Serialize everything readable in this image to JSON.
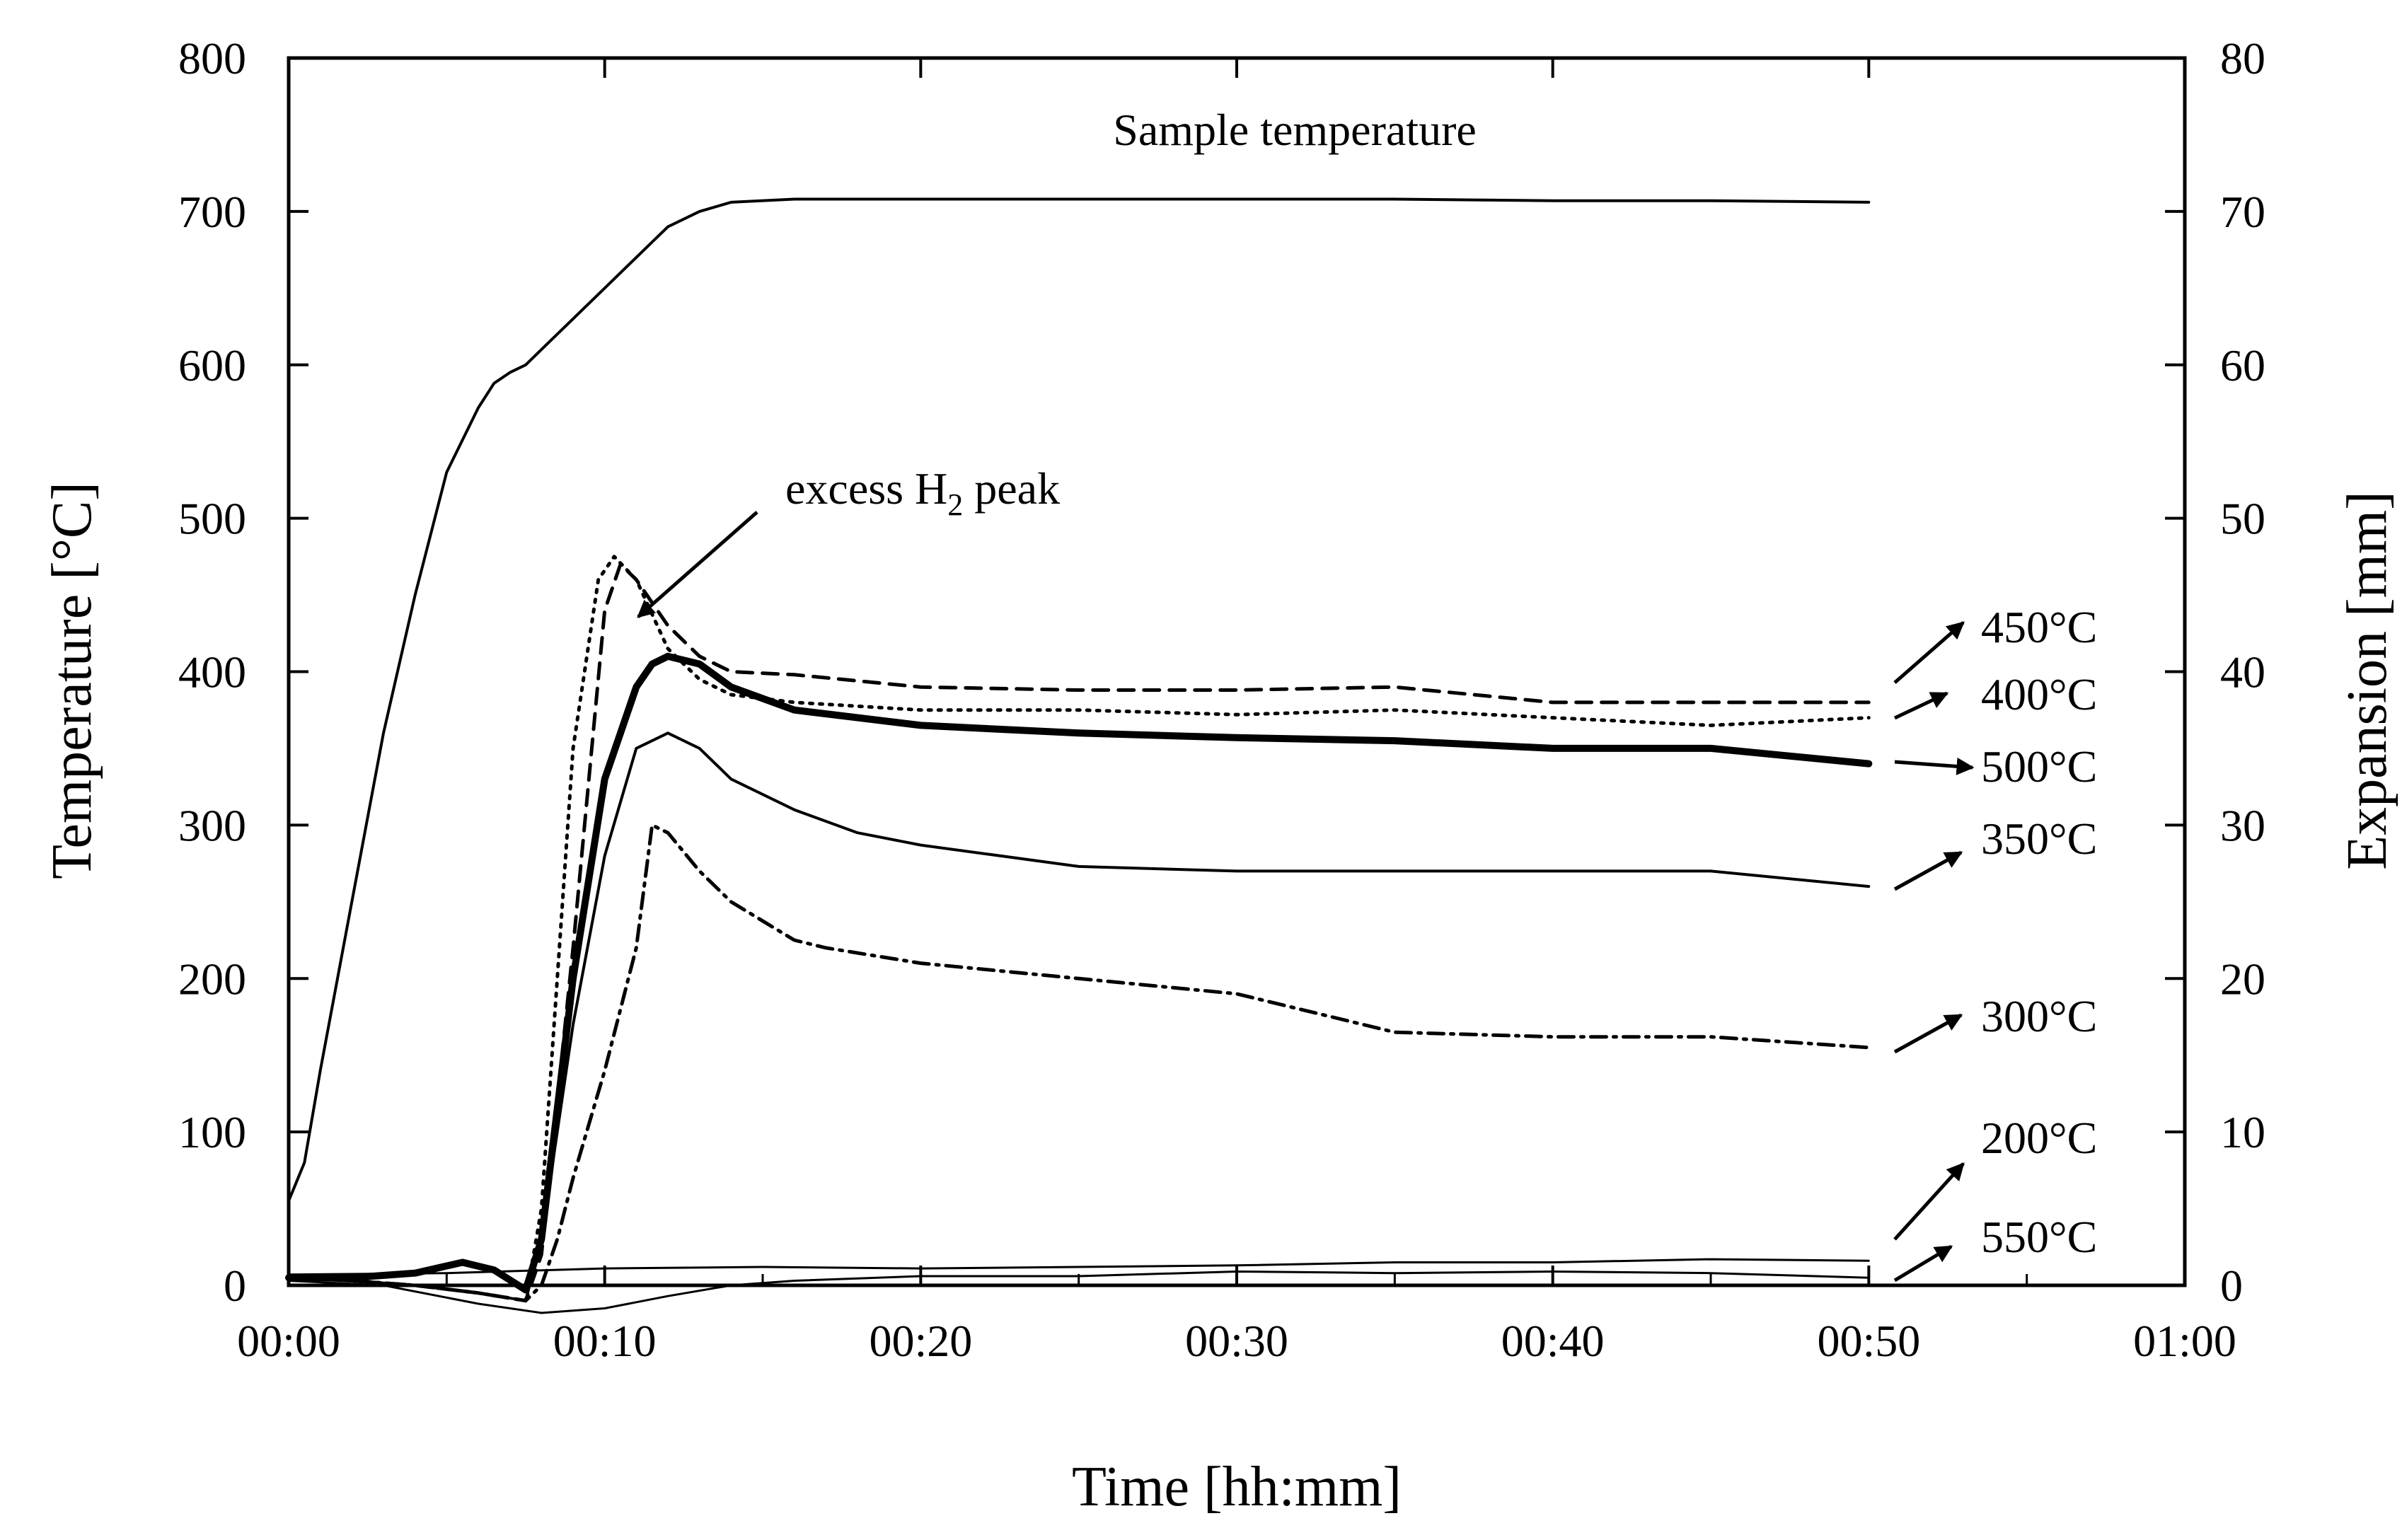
{
  "chart_data": {
    "type": "line",
    "title": "",
    "xlabel": "Time [hh:mm]",
    "ylabel": "Temperature [°C]",
    "y2label": "Expansion [mm]",
    "xlim": [
      0,
      60
    ],
    "ylim": [
      0,
      800
    ],
    "y2lim": [
      0,
      80
    ],
    "xticks": [
      0,
      10,
      20,
      30,
      40,
      50,
      60
    ],
    "xtick_labels": [
      "00:00",
      "00:10",
      "00:20",
      "00:30",
      "00:40",
      "00:50",
      "01:00"
    ],
    "yticks": [
      0,
      100,
      200,
      300,
      400,
      500,
      600,
      700,
      800
    ],
    "ytick_labels": [
      "0",
      "100",
      "200",
      "300",
      "400",
      "500",
      "600",
      "700",
      "800"
    ],
    "y2ticks": [
      0,
      10,
      20,
      30,
      40,
      50,
      60,
      70,
      80
    ],
    "y2tick_labels": [
      "0",
      "10",
      "20",
      "30",
      "40",
      "50",
      "60",
      "70",
      "80"
    ],
    "series": [
      {
        "name": "Sample temperature",
        "axis": "left",
        "style": "solid",
        "x": [
          0,
          0.5,
          1,
          2,
          3,
          4,
          5,
          6,
          6.5,
          7,
          7.5,
          8,
          9,
          10,
          11,
          12,
          13,
          14,
          16,
          20,
          25,
          30,
          35,
          40,
          45,
          50
        ],
        "y": [
          55,
          80,
          140,
          250,
          360,
          450,
          530,
          572,
          588,
          595,
          600,
          610,
          630,
          650,
          670,
          690,
          700,
          706,
          708,
          708,
          708,
          708,
          708,
          707,
          707,
          706
        ]
      },
      {
        "name": "450°C",
        "axis": "right",
        "style": "dashed",
        "x": [
          0,
          2,
          4,
          6,
          7.5,
          8,
          9,
          10,
          10.5,
          11,
          12,
          13,
          14,
          16,
          20,
          25,
          30,
          35,
          40,
          45,
          50
        ],
        "y": [
          0.5,
          0.3,
          0,
          -0.5,
          -1,
          2,
          22,
          44,
          47,
          46,
          43,
          41,
          40,
          39.8,
          39,
          38.8,
          38.8,
          39,
          38,
          38,
          38
        ]
      },
      {
        "name": "400°C",
        "axis": "right",
        "style": "dotted",
        "x": [
          0,
          2,
          4,
          6,
          7.5,
          8,
          9,
          9.8,
          10.3,
          11,
          12,
          13,
          14,
          16,
          20,
          25,
          30,
          35,
          40,
          45,
          50
        ],
        "y": [
          0.5,
          0.3,
          0,
          -0.5,
          -1,
          5,
          35,
          46,
          47.5,
          46,
          41.5,
          39.5,
          38.5,
          38,
          37.5,
          37.5,
          37.2,
          37.5,
          37,
          36.5,
          37
        ]
      },
      {
        "name": "500°C",
        "axis": "right",
        "style": "solid-thick",
        "x": [
          0,
          2,
          4,
          5.5,
          6.5,
          7.5,
          8,
          9,
          10,
          11,
          11.5,
          12,
          13,
          14,
          16,
          20,
          25,
          30,
          35,
          40,
          45,
          50
        ],
        "y": [
          0.5,
          0.5,
          0.8,
          1.5,
          1.0,
          -0.3,
          3,
          20,
          33,
          39,
          40.5,
          41,
          40.5,
          39,
          37.5,
          36.5,
          36,
          35.7,
          35.5,
          35,
          35,
          34
        ]
      },
      {
        "name": "350°C",
        "axis": "right",
        "style": "solid",
        "x": [
          0,
          2,
          4,
          6,
          7.5,
          8,
          9,
          10,
          11,
          12,
          13,
          14,
          16,
          18,
          20,
          25,
          30,
          35,
          40,
          45,
          50
        ],
        "y": [
          0.5,
          0.3,
          0,
          -0.5,
          -1,
          3,
          17,
          28,
          35,
          36,
          35,
          33,
          31,
          29.5,
          28.7,
          27.3,
          27,
          27,
          27,
          27,
          26
        ]
      },
      {
        "name": "300°C",
        "axis": "right",
        "style": "dash-dot",
        "x": [
          0,
          2,
          4,
          6,
          7.5,
          8,
          8.5,
          9,
          10,
          11,
          11.5,
          12,
          13,
          14,
          16,
          17,
          20,
          25,
          30,
          35,
          40,
          45,
          50
        ],
        "y": [
          0.5,
          0.3,
          0,
          -0.5,
          -1,
          0,
          3,
          7,
          14,
          22,
          30,
          29.5,
          27,
          25,
          22.5,
          22,
          21,
          20,
          19,
          16.5,
          16.2,
          16.2,
          15.5
        ]
      },
      {
        "name": "200°C",
        "axis": "right",
        "style": "solid-thin",
        "x": [
          0,
          5,
          10,
          15,
          20,
          25,
          30,
          35,
          40,
          45,
          50
        ],
        "y": [
          0.7,
          0.8,
          1.1,
          1.2,
          1.1,
          1.2,
          1.3,
          1.5,
          1.5,
          1.7,
          1.6
        ]
      },
      {
        "name": "550°C",
        "axis": "right",
        "style": "solid-thin",
        "x": [
          0,
          3,
          6,
          8,
          10,
          12,
          14,
          16,
          20,
          25,
          30,
          35,
          40,
          45,
          50
        ],
        "y": [
          0.3,
          0,
          -1.2,
          -1.8,
          -1.5,
          -0.7,
          0,
          0.3,
          0.6,
          0.6,
          0.9,
          0.8,
          0.9,
          0.8,
          0.5
        ]
      }
    ],
    "annotations": [
      {
        "text_main": "excess H",
        "text_sub": "2",
        "text_tail": " peak",
        "arrow_to": {
          "x": 11,
          "y_right": 43.5
        }
      },
      {
        "text": "Sample temperature"
      }
    ],
    "end_labels": [
      "450°C",
      "400°C",
      "500°C",
      "350°C",
      "300°C",
      "200°C",
      "550°C"
    ]
  }
}
